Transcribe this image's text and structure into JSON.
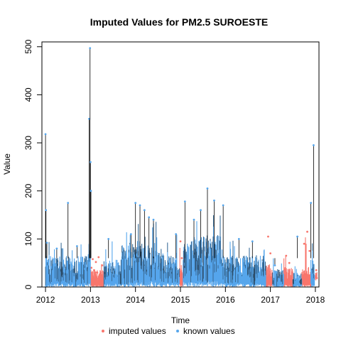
{
  "chart_data": {
    "type": "line",
    "title": "Imputed Values for  PM2.5 SUROESTE",
    "xlabel": "Time",
    "ylabel": "Value",
    "xlim": [
      2011.92,
      2018.08
    ],
    "ylim": [
      0,
      510
    ],
    "x_ticks": [
      2012,
      2013,
      2014,
      2015,
      2016,
      2017,
      2018
    ],
    "y_ticks": [
      0,
      100,
      200,
      300,
      400,
      500
    ],
    "grid": false,
    "legend_position": "bottom",
    "series": [
      {
        "name": "imputed values",
        "color": "#F8766D",
        "segments": [
          {
            "start": 2013.0,
            "end": 2013.3,
            "low": 0,
            "typical": 30,
            "peak": 65
          },
          {
            "start": 2014.98,
            "end": 2015.06,
            "low": 0,
            "typical": 40,
            "peak": 110
          },
          {
            "start": 2016.9,
            "end": 2017.05,
            "low": 0,
            "typical": 40,
            "peak": 110
          },
          {
            "start": 2017.3,
            "end": 2017.5,
            "low": 0,
            "typical": 35,
            "peak": 75
          },
          {
            "start": 2017.7,
            "end": 2017.9,
            "low": 0,
            "typical": 35,
            "peak": 120
          },
          {
            "start": 2017.98,
            "end": 2018.05,
            "low": 15,
            "typical": 30,
            "peak": 45
          }
        ],
        "points": [
          [
            2013.02,
            40
          ],
          [
            2013.05,
            58
          ],
          [
            2013.08,
            35
          ],
          [
            2013.12,
            52
          ],
          [
            2013.15,
            30
          ],
          [
            2013.18,
            62
          ],
          [
            2013.22,
            28
          ],
          [
            2013.26,
            45
          ],
          [
            2015.0,
            95
          ],
          [
            2015.03,
            60
          ],
          [
            2016.95,
            105
          ],
          [
            2017.0,
            70
          ],
          [
            2017.35,
            65
          ],
          [
            2017.42,
            50
          ],
          [
            2017.75,
            90
          ],
          [
            2017.82,
            115
          ],
          [
            2017.87,
            75
          ],
          [
            2018.02,
            35
          ]
        ]
      },
      {
        "name": "known values",
        "color": "#56A6EC",
        "segments": [
          {
            "start": 2012.0,
            "end": 2012.95,
            "low": 0,
            "typical": 55,
            "peak": 95
          },
          {
            "start": 2012.95,
            "end": 2013.0,
            "low": 0,
            "typical": 80,
            "peak": 130
          },
          {
            "start": 2013.3,
            "end": 2013.7,
            "low": 0,
            "typical": 50,
            "peak": 100
          },
          {
            "start": 2013.7,
            "end": 2014.0,
            "low": 0,
            "typical": 75,
            "peak": 120
          },
          {
            "start": 2014.0,
            "end": 2014.5,
            "low": 0,
            "typical": 80,
            "peak": 150
          },
          {
            "start": 2014.5,
            "end": 2014.98,
            "low": 0,
            "typical": 60,
            "peak": 115
          },
          {
            "start": 2015.06,
            "end": 2015.3,
            "low": 0,
            "typical": 80,
            "peak": 130
          },
          {
            "start": 2015.3,
            "end": 2015.9,
            "low": 0,
            "typical": 90,
            "peak": 150
          },
          {
            "start": 2015.9,
            "end": 2016.9,
            "low": 0,
            "typical": 55,
            "peak": 100
          },
          {
            "start": 2017.05,
            "end": 2017.3,
            "low": 0,
            "typical": 30,
            "peak": 65
          },
          {
            "start": 2017.5,
            "end": 2017.7,
            "low": 0,
            "typical": 25,
            "peak": 55
          },
          {
            "start": 2017.9,
            "end": 2017.98,
            "low": 0,
            "typical": 50,
            "peak": 110
          }
        ],
        "points": [
          [
            2012.0,
            318
          ],
          [
            2012.01,
            160
          ],
          [
            2012.03,
            92
          ],
          [
            2012.25,
            80
          ],
          [
            2012.5,
            175
          ],
          [
            2012.7,
            85
          ],
          [
            2012.97,
            350
          ],
          [
            2012.99,
            497
          ],
          [
            2013.0,
            260
          ],
          [
            2013.01,
            200
          ],
          [
            2013.4,
            100
          ],
          [
            2013.9,
            110
          ],
          [
            2014.0,
            175
          ],
          [
            2014.1,
            170
          ],
          [
            2014.2,
            160
          ],
          [
            2014.3,
            145
          ],
          [
            2014.4,
            140
          ],
          [
            2014.9,
            110
          ],
          [
            2015.1,
            178
          ],
          [
            2015.3,
            140
          ],
          [
            2015.45,
            160
          ],
          [
            2015.6,
            205
          ],
          [
            2015.75,
            180
          ],
          [
            2015.95,
            170
          ],
          [
            2016.3,
            100
          ],
          [
            2016.6,
            95
          ],
          [
            2017.1,
            45
          ],
          [
            2017.6,
            105
          ],
          [
            2017.9,
            175
          ],
          [
            2017.96,
            295
          ]
        ]
      }
    ]
  }
}
